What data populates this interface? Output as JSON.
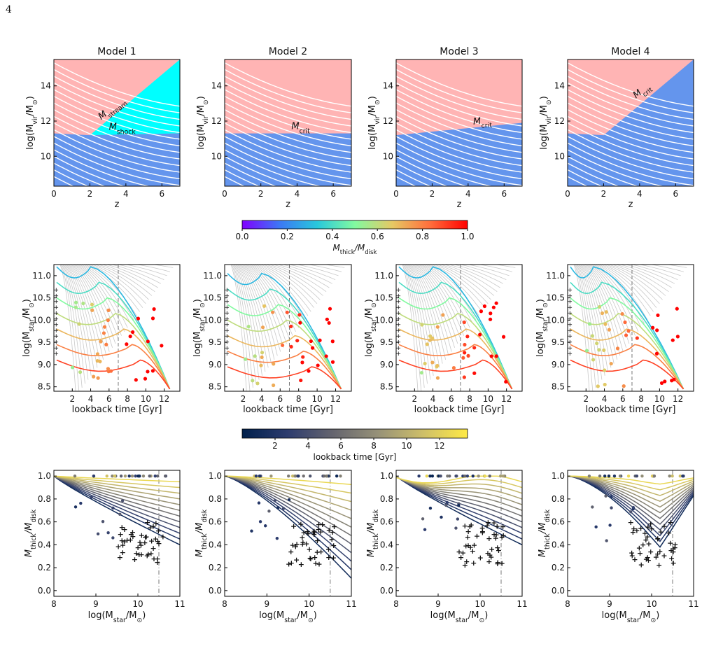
{
  "page_number": "4",
  "colors": {
    "pink": "#ffb4b4",
    "blue": "#6495ed",
    "cyan": "#00ffff",
    "red_dot": "#e8141b",
    "cross": "#0f2b55"
  },
  "panel_titles": [
    "Model 1",
    "Model 2",
    "Model 3",
    "Model 4"
  ],
  "top_row": {
    "xlabel": "z",
    "ylabel_text": "log(M",
    "ylabel_sub": "vir",
    "ylabel_tail": "/M",
    "ylabel_sun": "⊙",
    "xticks": [
      0,
      2,
      4,
      6
    ],
    "yticks": [
      10,
      12,
      14
    ],
    "labels": {
      "stream": "stream",
      "shock": "shock",
      "crit": "crit",
      "M": "M"
    }
  },
  "colorbar1": {
    "ticks": [
      "0.0",
      "0.2",
      "0.4",
      "0.6",
      "0.8",
      "1.0"
    ],
    "label_main": "M",
    "label_sub1": "thick",
    "label_mid": "/M",
    "label_sub2": "disk",
    "colormap": "rainbow"
  },
  "mid_row": {
    "xlabel": "lookback time [Gyr]",
    "ylabel_text": "log(M",
    "ylabel_sub": "star",
    "ylabel_tail": "/M",
    "xticks": [
      2,
      4,
      6,
      8,
      10,
      12
    ],
    "yticks": [
      "8.5",
      "9.0",
      "9.5",
      "10.0",
      "10.5",
      "11.0"
    ]
  },
  "colorbar2": {
    "ticks": [
      "2",
      "4",
      "6",
      "8",
      "10",
      "12"
    ],
    "label": "lookback time [Gyr]",
    "colormap": "cividis"
  },
  "bottom_row": {
    "xlabel_text": "log(M",
    "xlabel_sub": "star",
    "xlabel_tail": "/M",
    "xlabel_sun": "⊙",
    "xticks": [
      "8",
      "9",
      "10",
      "11"
    ],
    "yticks": [
      "0.0",
      "0.2",
      "0.4",
      "0.6",
      "0.8",
      "1.0"
    ],
    "ylabel_main": "M",
    "ylabel_sub1": "thick",
    "ylabel_mid": "/M",
    "ylabel_sub2": "disk"
  },
  "chart_data": [
    {
      "type": "area",
      "panel": "Model 1",
      "regions": [
        "stream (cold)",
        "shock (hot)"
      ],
      "xlim": [
        0,
        7
      ],
      "ylim": [
        8.3,
        15.5
      ],
      "boundary_low": [
        [
          0,
          11.3
        ],
        [
          2,
          11.2
        ],
        [
          7,
          11.3
        ]
      ],
      "boundary_high": [
        [
          2,
          11.2
        ],
        [
          7,
          15.5
        ]
      ],
      "halo_tracks_count": 18
    },
    {
      "type": "area",
      "panel": "Model 2",
      "xlim": [
        0,
        7
      ],
      "ylim": [
        8.3,
        15.5
      ],
      "boundary": [
        [
          0,
          11.3
        ],
        [
          7,
          11.3
        ]
      ]
    },
    {
      "type": "area",
      "panel": "Model 3",
      "xlim": [
        0,
        7
      ],
      "ylim": [
        8.3,
        15.5
      ],
      "boundary": [
        [
          0,
          11.2
        ],
        [
          7,
          11.9
        ]
      ]
    },
    {
      "type": "area",
      "panel": "Model 4",
      "xlim": [
        0,
        7
      ],
      "ylim": [
        8.3,
        15.5
      ],
      "boundary": [
        [
          0,
          11.3
        ],
        [
          2,
          11.2
        ],
        [
          7,
          15.5
        ]
      ]
    },
    {
      "type": "line",
      "row": "middle",
      "xlim": [
        0,
        13.7
      ],
      "ylim": [
        8.4,
        11.25
      ],
      "vline_x": 7,
      "contour_levels": [
        0.3,
        0.4,
        0.5,
        0.6,
        0.7,
        0.8,
        0.9
      ]
    },
    {
      "type": "scatter",
      "row": "bottom",
      "xlim": [
        8,
        11
      ],
      "ylim": [
        -0.05,
        1.05
      ],
      "vline_x": 10.5
    }
  ]
}
